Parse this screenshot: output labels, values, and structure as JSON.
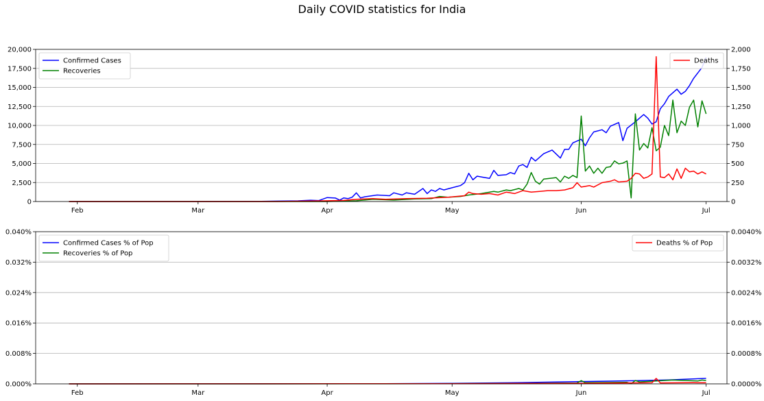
{
  "title": "Daily COVID statistics for India",
  "chart_data": [
    {
      "type": "line",
      "panel": "top",
      "x_ticks": [
        "Feb",
        "Mar",
        "Apr",
        "May",
        "Jun",
        "Jul"
      ],
      "x_tick_dates": [
        "2020-02-01",
        "2020-03-01",
        "2020-04-01",
        "2020-05-01",
        "2020-06-01",
        "2020-07-01"
      ],
      "xlim": [
        "2020-01-22",
        "2020-07-06"
      ],
      "ylim_left": [
        0,
        21000
      ],
      "ylim_right": [
        0,
        2100
      ],
      "yticks_left": [
        "0",
        "2,500",
        "5,000",
        "7,500",
        "10,000",
        "12,500",
        "15,000",
        "17,500",
        "20,000"
      ],
      "yticks_right": [
        "0",
        "250",
        "500",
        "750",
        "1,000",
        "1,250",
        "1,500",
        "1,750",
        "2,000"
      ],
      "grid": "y",
      "legend_left": "upper-left",
      "legend_right": "upper-right",
      "series": [
        {
          "name": "Confirmed Cases",
          "axis": "left",
          "color": "#0000ff",
          "points": [
            [
              "2020-01-30",
              0
            ],
            [
              "2020-03-01",
              0
            ],
            [
              "2020-03-15",
              20
            ],
            [
              "2020-03-20",
              60
            ],
            [
              "2020-03-25",
              90
            ],
            [
              "2020-03-28",
              180
            ],
            [
              "2020-03-30",
              130
            ],
            [
              "2020-04-01",
              550
            ],
            [
              "2020-04-03",
              480
            ],
            [
              "2020-04-04",
              200
            ],
            [
              "2020-04-05",
              500
            ],
            [
              "2020-04-06",
              400
            ],
            [
              "2020-04-07",
              600
            ],
            [
              "2020-04-08",
              1200
            ],
            [
              "2020-04-09",
              500
            ],
            [
              "2020-04-10",
              650
            ],
            [
              "2020-04-13",
              900
            ],
            [
              "2020-04-16",
              800
            ],
            [
              "2020-04-17",
              1200
            ],
            [
              "2020-04-19",
              900
            ],
            [
              "2020-04-20",
              1200
            ],
            [
              "2020-04-22",
              1000
            ],
            [
              "2020-04-24",
              1800
            ],
            [
              "2020-04-25",
              1100
            ],
            [
              "2020-04-26",
              1600
            ],
            [
              "2020-04-27",
              1400
            ],
            [
              "2020-04-28",
              1800
            ],
            [
              "2020-04-29",
              1600
            ],
            [
              "2020-05-01",
              1900
            ],
            [
              "2020-05-03",
              2200
            ],
            [
              "2020-05-04",
              2600
            ],
            [
              "2020-05-05",
              3900
            ],
            [
              "2020-05-06",
              3000
            ],
            [
              "2020-05-07",
              3500
            ],
            [
              "2020-05-08",
              3400
            ],
            [
              "2020-05-10",
              3200
            ],
            [
              "2020-05-11",
              4300
            ],
            [
              "2020-05-12",
              3600
            ],
            [
              "2020-05-14",
              3700
            ],
            [
              "2020-05-15",
              4000
            ],
            [
              "2020-05-16",
              3800
            ],
            [
              "2020-05-17",
              4900
            ],
            [
              "2020-05-18",
              5100
            ],
            [
              "2020-05-19",
              4700
            ],
            [
              "2020-05-20",
              6100
            ],
            [
              "2020-05-21",
              5600
            ],
            [
              "2020-05-23",
              6600
            ],
            [
              "2020-05-25",
              7100
            ],
            [
              "2020-05-27",
              6000
            ],
            [
              "2020-05-28",
              7200
            ],
            [
              "2020-05-29",
              7200
            ],
            [
              "2020-05-30",
              8100
            ],
            [
              "2020-06-01",
              8600
            ],
            [
              "2020-06-02",
              7700
            ],
            [
              "2020-06-03",
              8800
            ],
            [
              "2020-06-04",
              9600
            ],
            [
              "2020-06-06",
              9900
            ],
            [
              "2020-06-07",
              9500
            ],
            [
              "2020-06-08",
              10400
            ],
            [
              "2020-06-10",
              10900
            ],
            [
              "2020-06-11",
              8400
            ],
            [
              "2020-06-12",
              10100
            ],
            [
              "2020-06-14",
              11000
            ],
            [
              "2020-06-16",
              12000
            ],
            [
              "2020-06-17",
              11500
            ],
            [
              "2020-06-18",
              10700
            ],
            [
              "2020-06-19",
              11000
            ],
            [
              "2020-06-20",
              12800
            ],
            [
              "2020-06-21",
              13500
            ],
            [
              "2020-06-22",
              14500
            ],
            [
              "2020-06-24",
              15500
            ],
            [
              "2020-06-25",
              14800
            ],
            [
              "2020-06-26",
              15200
            ],
            [
              "2020-06-27",
              16000
            ],
            [
              "2020-06-28",
              17000
            ],
            [
              "2020-06-30",
              18500
            ],
            [
              "2020-07-01",
              19900
            ]
          ]
        },
        {
          "name": "Recoveries",
          "axis": "left",
          "color": "#008000",
          "points": [
            [
              "2020-01-30",
              0
            ],
            [
              "2020-04-01",
              0
            ],
            [
              "2020-04-08",
              100
            ],
            [
              "2020-04-12",
              300
            ],
            [
              "2020-04-17",
              200
            ],
            [
              "2020-04-22",
              350
            ],
            [
              "2020-04-26",
              400
            ],
            [
              "2020-04-28",
              700
            ],
            [
              "2020-04-30",
              600
            ],
            [
              "2020-05-03",
              700
            ],
            [
              "2020-05-05",
              900
            ],
            [
              "2020-05-08",
              1100
            ],
            [
              "2020-05-11",
              1400
            ],
            [
              "2020-05-12",
              1300
            ],
            [
              "2020-05-14",
              1600
            ],
            [
              "2020-05-15",
              1500
            ],
            [
              "2020-05-17",
              1800
            ],
            [
              "2020-05-18",
              1600
            ],
            [
              "2020-05-19",
              2400
            ],
            [
              "2020-05-20",
              4000
            ],
            [
              "2020-05-21",
              2800
            ],
            [
              "2020-05-22",
              2400
            ],
            [
              "2020-05-23",
              3100
            ],
            [
              "2020-05-26",
              3300
            ],
            [
              "2020-05-27",
              2700
            ],
            [
              "2020-05-28",
              3500
            ],
            [
              "2020-05-29",
              3200
            ],
            [
              "2020-05-30",
              3600
            ],
            [
              "2020-05-31",
              3300
            ],
            [
              "2020-06-01",
              11800
            ],
            [
              "2020-06-02",
              4200
            ],
            [
              "2020-06-03",
              4900
            ],
            [
              "2020-06-04",
              3900
            ],
            [
              "2020-06-05",
              4600
            ],
            [
              "2020-06-06",
              3900
            ],
            [
              "2020-06-07",
              4700
            ],
            [
              "2020-06-08",
              4800
            ],
            [
              "2020-06-09",
              5600
            ],
            [
              "2020-06-10",
              5200
            ],
            [
              "2020-06-11",
              5300
            ],
            [
              "2020-06-12",
              5600
            ],
            [
              "2020-06-13",
              500
            ],
            [
              "2020-06-14",
              12100
            ],
            [
              "2020-06-15",
              7100
            ],
            [
              "2020-06-16",
              8000
            ],
            [
              "2020-06-17",
              7400
            ],
            [
              "2020-06-18",
              10200
            ],
            [
              "2020-06-19",
              7000
            ],
            [
              "2020-06-20",
              7500
            ],
            [
              "2020-06-21",
              10500
            ],
            [
              "2020-06-22",
              9100
            ],
            [
              "2020-06-23",
              14000
            ],
            [
              "2020-06-24",
              9500
            ],
            [
              "2020-06-25",
              11100
            ],
            [
              "2020-06-26",
              10500
            ],
            [
              "2020-06-27",
              13000
            ],
            [
              "2020-06-28",
              14000
            ],
            [
              "2020-06-29",
              10300
            ],
            [
              "2020-06-30",
              13900
            ],
            [
              "2020-07-01",
              12100
            ]
          ]
        },
        {
          "name": "Deaths",
          "axis": "right",
          "color": "#ff0000",
          "points": [
            [
              "2020-01-30",
              0
            ],
            [
              "2020-03-20",
              0
            ],
            [
              "2020-04-01",
              10
            ],
            [
              "2020-04-05",
              15
            ],
            [
              "2020-04-08",
              30
            ],
            [
              "2020-04-12",
              40
            ],
            [
              "2020-04-15",
              30
            ],
            [
              "2020-04-20",
              40
            ],
            [
              "2020-04-25",
              45
            ],
            [
              "2020-04-30",
              60
            ],
            [
              "2020-05-02",
              70
            ],
            [
              "2020-05-04",
              80
            ],
            [
              "2020-05-05",
              130
            ],
            [
              "2020-05-06",
              110
            ],
            [
              "2020-05-08",
              100
            ],
            [
              "2020-05-10",
              110
            ],
            [
              "2020-05-12",
              90
            ],
            [
              "2020-05-14",
              130
            ],
            [
              "2020-05-16",
              110
            ],
            [
              "2020-05-18",
              150
            ],
            [
              "2020-05-20",
              130
            ],
            [
              "2020-05-22",
              140
            ],
            [
              "2020-05-24",
              150
            ],
            [
              "2020-05-26",
              150
            ],
            [
              "2020-05-28",
              160
            ],
            [
              "2020-05-30",
              190
            ],
            [
              "2020-05-31",
              260
            ],
            [
              "2020-06-01",
              200
            ],
            [
              "2020-06-03",
              220
            ],
            [
              "2020-06-04",
              200
            ],
            [
              "2020-06-06",
              260
            ],
            [
              "2020-06-08",
              280
            ],
            [
              "2020-06-09",
              300
            ],
            [
              "2020-06-10",
              270
            ],
            [
              "2020-06-12",
              280
            ],
            [
              "2020-06-13",
              320
            ],
            [
              "2020-06-14",
              390
            ],
            [
              "2020-06-15",
              380
            ],
            [
              "2020-06-16",
              320
            ],
            [
              "2020-06-17",
              340
            ],
            [
              "2020-06-18",
              380
            ],
            [
              "2020-06-19",
              2000
            ],
            [
              "2020-06-20",
              340
            ],
            [
              "2020-06-21",
              330
            ],
            [
              "2020-06-22",
              380
            ],
            [
              "2020-06-23",
              300
            ],
            [
              "2020-06-24",
              450
            ],
            [
              "2020-06-25",
              320
            ],
            [
              "2020-06-26",
              460
            ],
            [
              "2020-06-27",
              410
            ],
            [
              "2020-06-28",
              420
            ],
            [
              "2020-06-29",
              380
            ],
            [
              "2020-06-30",
              410
            ],
            [
              "2020-07-01",
              380
            ]
          ]
        }
      ]
    },
    {
      "type": "line",
      "panel": "bottom",
      "x_ticks": [
        "Feb",
        "Mar",
        "Apr",
        "May",
        "Jun",
        "Jul"
      ],
      "x_tick_dates": [
        "2020-02-01",
        "2020-03-01",
        "2020-04-01",
        "2020-05-01",
        "2020-06-01",
        "2020-07-01"
      ],
      "xlim": [
        "2020-01-22",
        "2020-07-06"
      ],
      "ylim_left": [
        0,
        0.04
      ],
      "ylim_right": [
        0,
        0.004
      ],
      "yticks_left": [
        "0.000%",
        "0.008%",
        "0.016%",
        "0.024%",
        "0.032%",
        "0.040%"
      ],
      "yticks_right": [
        "0.0000%",
        "0.0008%",
        "0.0016%",
        "0.0024%",
        "0.0032%",
        "0.0040%"
      ],
      "grid": "y",
      "legend_left": "upper-left",
      "legend_right": "upper-right",
      "series": [
        {
          "name": "Confirmed Cases % of Pop",
          "axis": "left",
          "color": "#0000ff",
          "points": [
            [
              "2020-01-30",
              0
            ],
            [
              "2020-04-01",
              4e-05
            ],
            [
              "2020-04-15",
              6e-05
            ],
            [
              "2020-05-01",
              0.00014
            ],
            [
              "2020-05-15",
              0.00028
            ],
            [
              "2020-06-01",
              0.00062
            ],
            [
              "2020-06-15",
              0.00085
            ],
            [
              "2020-06-22",
              0.00105
            ],
            [
              "2020-07-01",
              0.00144
            ]
          ]
        },
        {
          "name": "Recoveries % of Pop",
          "axis": "left",
          "color": "#008000",
          "points": [
            [
              "2020-01-30",
              0
            ],
            [
              "2020-04-15",
              2e-05
            ],
            [
              "2020-05-15",
              0.00011
            ],
            [
              "2020-05-31",
              0.00024
            ],
            [
              "2020-06-01",
              0.00085
            ],
            [
              "2020-06-02",
              0.0003
            ],
            [
              "2020-06-12",
              0.0004
            ],
            [
              "2020-06-13",
              4e-05
            ],
            [
              "2020-06-14",
              0.00088
            ],
            [
              "2020-06-15",
              0.00052
            ],
            [
              "2020-06-23",
              0.00101
            ],
            [
              "2020-06-29",
              0.00075
            ],
            [
              "2020-06-30",
              0.00101
            ],
            [
              "2020-07-01",
              0.00088
            ]
          ]
        },
        {
          "name": "Deaths % of Pop",
          "axis": "right",
          "color": "#ff0000",
          "points": [
            [
              "2020-01-30",
              0
            ],
            [
              "2020-05-01",
              5e-06
            ],
            [
              "2020-06-01",
              1.5e-05
            ],
            [
              "2020-06-18",
              2.8e-05
            ],
            [
              "2020-06-19",
              0.000145
            ],
            [
              "2020-06-20",
              2.5e-05
            ],
            [
              "2020-06-28",
              3e-05
            ],
            [
              "2020-07-01",
              2.8e-05
            ]
          ]
        }
      ]
    }
  ]
}
